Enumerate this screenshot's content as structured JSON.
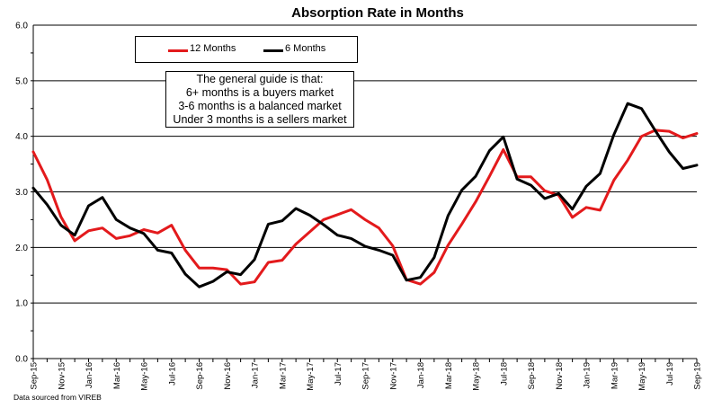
{
  "source_note": "Data sourced from VIREB",
  "note": {
    "lines": [
      "The general guide is that:",
      "6+ months is a buyers market",
      "3-6 months is a balanced market",
      "Under 3 months is a sellers market"
    ]
  },
  "colors": {
    "series_12": "#e31a1c",
    "series_6": "#000000",
    "grid": "#000000"
  },
  "chart_data": {
    "type": "line",
    "title": "Absorption Rate in Months",
    "xlabel": "",
    "ylabel": "",
    "ylim": [
      0,
      6
    ],
    "yticks": [
      "0.0",
      "1.0",
      "2.0",
      "3.0",
      "4.0",
      "5.0",
      "6.0"
    ],
    "ytick_values": [
      0,
      1,
      2,
      3,
      4,
      5,
      6
    ],
    "grid": "horizontal",
    "legend": "top-left",
    "x": [
      "Sep-15",
      "Oct-15",
      "Nov-15",
      "Dec-15",
      "Jan-16",
      "Feb-16",
      "Mar-16",
      "Apr-16",
      "May-16",
      "Jun-16",
      "Jul-16",
      "Aug-16",
      "Sep-16",
      "Oct-16",
      "Nov-16",
      "Dec-16",
      "Jan-17",
      "Feb-17",
      "Mar-17",
      "Apr-17",
      "May-17",
      "Jun-17",
      "Jul-17",
      "Aug-17",
      "Sep-17",
      "Oct-17",
      "Nov-17",
      "Dec-17",
      "Jan-18",
      "Feb-18",
      "Mar-18",
      "Apr-18",
      "May-18",
      "Jun-18",
      "Jul-18",
      "Aug-18",
      "Sep-18",
      "Oct-18",
      "Nov-18",
      "Dec-18",
      "Jan-19",
      "Feb-19",
      "Mar-19",
      "Apr-19",
      "May-19",
      "Jun-19",
      "Jul-19",
      "Aug-19",
      "Sep-19"
    ],
    "x_tick_labels": [
      "Sep-15",
      "Nov-15",
      "Jan-16",
      "Mar-16",
      "May-16",
      "Jul-16",
      "Sep-16",
      "Nov-16",
      "Jan-17",
      "Mar-17",
      "May-17",
      "Jul-17",
      "Sep-17",
      "Nov-17",
      "Jan-18",
      "Mar-18",
      "May-18",
      "Jul-18",
      "Sep-18",
      "Nov-18",
      "Jan-19",
      "Mar-19",
      "May-19",
      "Jul-19",
      "Sep-19"
    ],
    "series": [
      {
        "name": "12 Months",
        "color": "#e31a1c",
        "values": [
          3.72,
          3.22,
          2.55,
          2.12,
          2.3,
          2.35,
          2.16,
          2.21,
          2.32,
          2.26,
          2.4,
          1.95,
          1.63,
          1.63,
          1.6,
          1.34,
          1.38,
          1.73,
          1.77,
          2.06,
          2.28,
          2.5,
          2.59,
          2.68,
          2.5,
          2.35,
          2.03,
          1.42,
          1.34,
          1.55,
          2.04,
          2.42,
          2.82,
          3.28,
          3.76,
          3.27,
          3.27,
          3.02,
          2.94,
          2.54,
          2.72,
          2.67,
          3.21,
          3.57,
          4.0,
          4.11,
          4.09,
          3.97,
          4.05
        ]
      },
      {
        "name": "6 Months",
        "color": "#000000",
        "values": [
          3.07,
          2.77,
          2.4,
          2.22,
          2.75,
          2.9,
          2.5,
          2.35,
          2.25,
          1.95,
          1.9,
          1.52,
          1.29,
          1.39,
          1.56,
          1.51,
          1.78,
          2.42,
          2.48,
          2.7,
          2.58,
          2.41,
          2.22,
          2.16,
          2.02,
          1.95,
          1.86,
          1.41,
          1.46,
          1.82,
          2.57,
          3.03,
          3.28,
          3.74,
          3.99,
          3.23,
          3.12,
          2.88,
          2.97,
          2.69,
          3.1,
          3.33,
          4.03,
          4.59,
          4.5,
          4.1,
          3.72,
          3.42,
          3.48
        ]
      }
    ]
  }
}
